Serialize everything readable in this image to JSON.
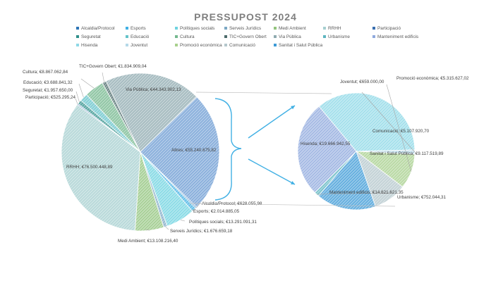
{
  "chart_data": {
    "type": "pie",
    "title": "PRESSUPOST 2024",
    "legend_position": "top",
    "main_pie": [
      {
        "name": "Alcaldia/Protocol",
        "value": 628055.98,
        "label": "Alcaldia/Protocol;  €628.055,98",
        "color": "#2e75b6"
      },
      {
        "name": "Esports",
        "value": 2014885.05,
        "label": "Esports;  €2.014.885,05",
        "color": "#41b0e4"
      },
      {
        "name": "Polítiques socials",
        "value": 13291091.31,
        "label": "Polítiques socials;  €13.291.091,31",
        "color": "#6fd3e0"
      },
      {
        "name": "Serveis Jurídics",
        "value": 1676659.18,
        "label": "Serveis Jurídics;  €1.676.659,18",
        "color": "#7ba7c4"
      },
      {
        "name": "Medi Ambient",
        "value": 13108216.4,
        "label": "Medi Ambient;  €13.108.216,40",
        "color": "#92c47d"
      },
      {
        "name": "RRHH",
        "value": 76500448.89,
        "label": "RRHH;  €76.500.448,89",
        "color": "#a6cfd0"
      },
      {
        "name": "Participació",
        "value": 525295.24,
        "label": "Participació;  €525.295,24",
        "color": "#3a6fb0"
      },
      {
        "name": "Seguretat",
        "value": 1957650.0,
        "label": "Seguretat;  €1.957.650,00",
        "color": "#2f8f8a"
      },
      {
        "name": "Educació",
        "value": 3688841.32,
        "label": "Educació;  €3.688.841,32",
        "color": "#64c3c9"
      },
      {
        "name": "Cultura",
        "value": 8867062.84,
        "label": "Cultura;  €8.867.062,84",
        "color": "#74b88e"
      },
      {
        "name": "TIC+Govern Obert",
        "value": 1834909.04,
        "label": "TIC+Govern Obert;  €1.834.909,04",
        "color": "#4c6b6b"
      },
      {
        "name": "Via Pública",
        "value": 44343902.13,
        "label": "Via Pública;  €44.343.902,13",
        "color": "#8faab0"
      },
      {
        "name": "Altres",
        "value": 55240675.82,
        "label": "Altres;  €55.240.675,82",
        "color": "#6c9bd2"
      }
    ],
    "secondary_pie": [
      {
        "name": "Hisenda",
        "value": 19666942.55,
        "label": "Hisenda;  €19.666.942,55",
        "color": "#8ed8e6"
      },
      {
        "name": "Joventut",
        "value": 659000.0,
        "label": "Joventut;  €659.000,00",
        "color": "#b5d9e8"
      },
      {
        "name": "Promoció econòmica",
        "value": 5315627.02,
        "label": "Promoció econòmica;  €5.315.627,02",
        "color": "#a8d08d"
      },
      {
        "name": "Comunicació",
        "value": 5107920.7,
        "label": "Comunicació;  €5.107.920,70",
        "color": "#b4c7cc"
      },
      {
        "name": "Sanitat i Salut Pública",
        "value": 9117519.89,
        "label": "Sanitat i Salut Pública;  €9.117.519,89",
        "color": "#3d9ad6"
      },
      {
        "name": "Urbanisme",
        "value": 752044.31,
        "label": "Urbanisme;  €752.044,31",
        "color": "#5db5c0"
      },
      {
        "name": "Manteniment edificis",
        "value": 14621621.35,
        "label": "Manteniment edificis;  €14.621.621,35",
        "color": "#8fa9dd"
      }
    ],
    "legend": [
      {
        "name": "Alcaldia/Protocol",
        "color": "#2e75b6"
      },
      {
        "name": "Esports",
        "color": "#41b0e4"
      },
      {
        "name": "Polítiques socials",
        "color": "#6fd3e0"
      },
      {
        "name": "Serveis Jurídics",
        "color": "#7ba7c4"
      },
      {
        "name": "Medi Ambient",
        "color": "#92c47d"
      },
      {
        "name": "RRHH",
        "color": "#a6cfd0"
      },
      {
        "name": "Participació",
        "color": "#3a6fb0"
      },
      {
        "name": "Seguretat",
        "color": "#2f8f8a"
      },
      {
        "name": "Educació",
        "color": "#64c3c9"
      },
      {
        "name": "Cultura",
        "color": "#74b88e"
      },
      {
        "name": "TIC+Govern Obert",
        "color": "#4c6b6b"
      },
      {
        "name": "Via Pública",
        "color": "#8faab0"
      },
      {
        "name": "Urbanisme",
        "color": "#5db5c0"
      },
      {
        "name": "Manteniment edificis",
        "color": "#8fa9dd"
      },
      {
        "name": "Hisenda",
        "color": "#8ed8e6"
      },
      {
        "name": "Joventut",
        "color": "#b5d9e8"
      },
      {
        "name": "Promoció econòmica",
        "color": "#a8d08d"
      },
      {
        "name": "Comunicació",
        "color": "#b4c7cc"
      },
      {
        "name": "Sanitat i Salut Pública",
        "color": "#3d9ad6"
      }
    ]
  }
}
